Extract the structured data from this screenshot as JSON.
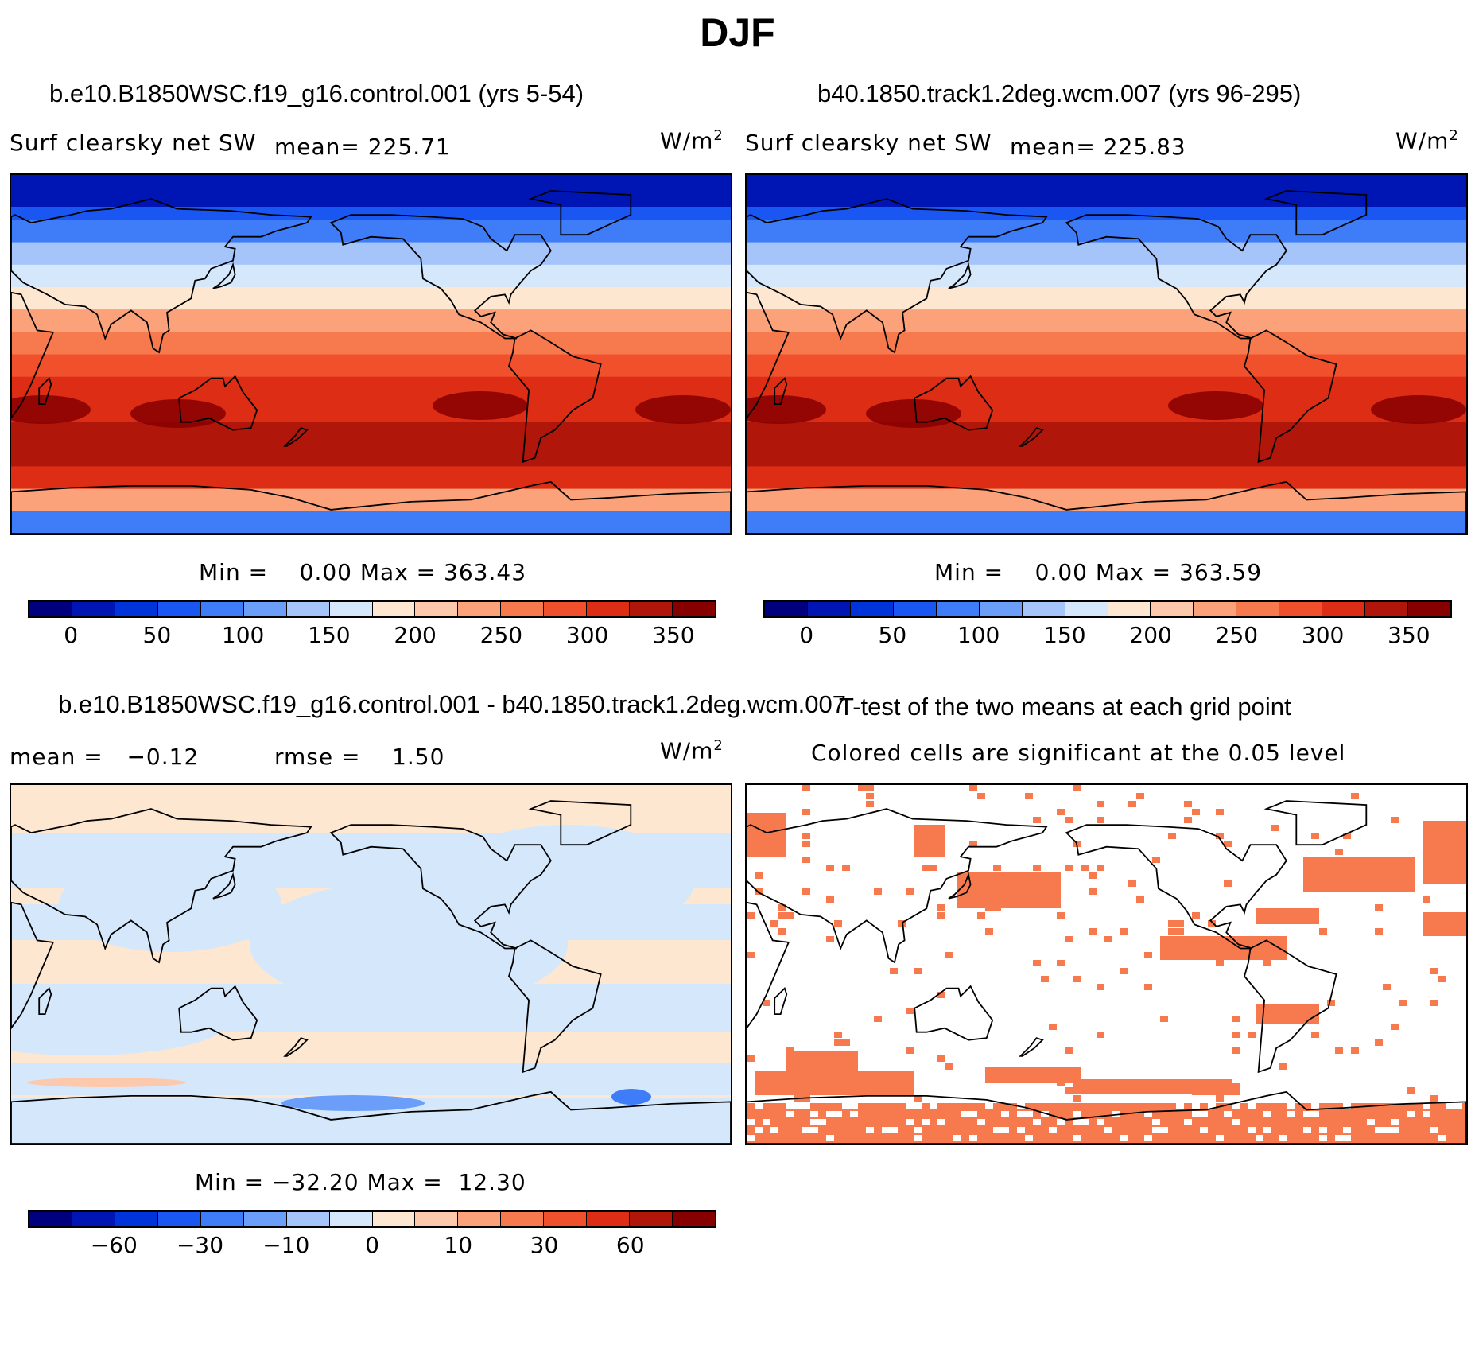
{
  "figure_title": "DJF",
  "panels": {
    "case1": {
      "case_title": "b.e10.B1850WSC.f19_g16.control.001 (yrs 5-54)",
      "variable": "Surf clearsky net SW",
      "mean_label": "mean= 225.71",
      "units": "W/m",
      "units_exp": "2",
      "minmax": "Min =    0.00 Max = 363.43"
    },
    "case2": {
      "case_title": "b40.1850.track1.2deg.wcm.007 (yrs 96-295)",
      "variable": "Surf clearsky net SW",
      "mean_label": "mean= 225.83",
      "units": "W/m",
      "units_exp": "2",
      "minmax": "Min =    0.00 Max = 363.59"
    },
    "diff": {
      "case_title": "b.e10.B1850WSC.f19_g16.control.001 - b40.1850.track1.2deg.wcm.007",
      "mean_label": "mean =   −0.12",
      "rmse_label": "rmse =    1.50",
      "units": "W/m",
      "units_exp": "2",
      "minmax": "Min = −32.20 Max =  12.30"
    },
    "ttest": {
      "title": "T-test of the two means at each grid point",
      "subtitle": "Colored cells are significant at the 0.05 level"
    }
  },
  "colorbars": {
    "abs": {
      "colors": [
        "#00007f",
        "#0016b4",
        "#0033d9",
        "#1a57f2",
        "#3f7df8",
        "#6a9ef9",
        "#a4c4fa",
        "#d4e7fb",
        "#fde7d0",
        "#fdc9ad",
        "#fba27a",
        "#f77a4e",
        "#f0502c",
        "#dd2d14",
        "#b1160b",
        "#870000"
      ],
      "ticks": [
        "0",
        "50",
        "100",
        "150",
        "200",
        "250",
        "300",
        "350"
      ]
    },
    "diff": {
      "colors": [
        "#00007f",
        "#0016b4",
        "#0033d9",
        "#1a57f2",
        "#3f7df8",
        "#6a9ef9",
        "#a4c4fa",
        "#d4e7fb",
        "#fde7d0",
        "#fdc9ad",
        "#fba27a",
        "#f77a4e",
        "#f0502c",
        "#dd2d14",
        "#b1160b",
        "#870000"
      ],
      "ticks": [
        "−60",
        "−30",
        "−10",
        "0",
        "10",
        "30",
        "60"
      ]
    }
  },
  "map_bands": {
    "abs": [
      "#0033d9",
      "#1a57f2",
      "#3f7df8",
      "#a4c4fa",
      "#d4e7fb",
      "#fde7d0",
      "#fba27a",
      "#f77a4e",
      "#f0502c",
      "#dd2d14",
      "#dd2d14",
      "#b1160b",
      "#b1160b",
      "#dd2d14",
      "#fba27a",
      "#3f7df8"
    ],
    "diff_land": "#fde7d0",
    "diff_sea": "#d4e7fb",
    "sig_color": "#f77a4e"
  }
}
